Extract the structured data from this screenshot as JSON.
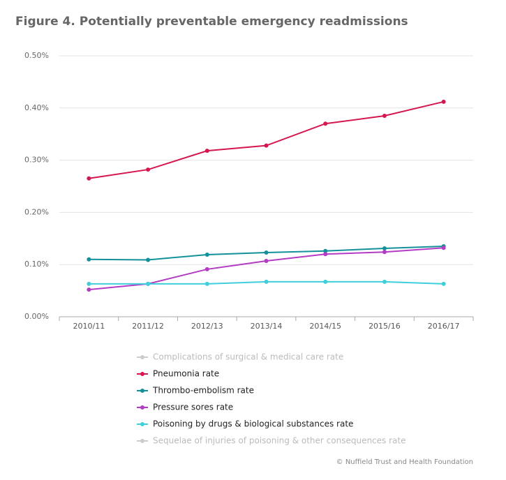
{
  "chart_data": {
    "type": "line",
    "title": "Figure 4. Potentially preventable emergency readmissions",
    "categories": [
      "2010/11",
      "2011/12",
      "2012/13",
      "2013/14",
      "2014/15",
      "2015/16",
      "2016/17"
    ],
    "series": [
      {
        "name": "Complications of surgical & medical care rate",
        "color": "#cccccc",
        "visible": false,
        "values": [
          null,
          null,
          null,
          null,
          null,
          null,
          null
        ]
      },
      {
        "name": "Pneumonia rate",
        "color": "#d6174f",
        "visible": true,
        "values": [
          0.265,
          0.282,
          0.318,
          0.328,
          0.37,
          0.385,
          0.412
        ]
      },
      {
        "name": "Thrombo-embolism rate",
        "color": "#13919a",
        "visible": true,
        "values": [
          0.11,
          0.109,
          0.119,
          0.123,
          0.126,
          0.131,
          0.135
        ]
      },
      {
        "name": "Pressure sores rate",
        "color": "#b43cc4",
        "visible": true,
        "values": [
          0.052,
          0.063,
          0.091,
          0.107,
          0.12,
          0.124,
          0.132
        ]
      },
      {
        "name": "Poisoning by drugs & biological substances rate",
        "color": "#3fcfdc",
        "visible": true,
        "values": [
          0.063,
          0.063,
          0.063,
          0.067,
          0.067,
          0.067,
          0.063
        ]
      },
      {
        "name": "Sequelae of injuries of poisoning & other consequences rate",
        "color": "#cccccc",
        "visible": false,
        "values": [
          null,
          null,
          null,
          null,
          null,
          null,
          null
        ]
      }
    ],
    "ylim": [
      0,
      0.5
    ],
    "yticks": [
      {
        "value": 0,
        "label": "0.00%"
      },
      {
        "value": 0.1,
        "label": "0.10%"
      },
      {
        "value": 0.2,
        "label": "0.20%"
      },
      {
        "value": 0.3,
        "label": "0.30%"
      },
      {
        "value": 0.4,
        "label": "0.40%"
      },
      {
        "value": 0.5,
        "label": "0.50%"
      }
    ],
    "grid": true,
    "source": "© Nuffield Trust and Health Foundation"
  }
}
